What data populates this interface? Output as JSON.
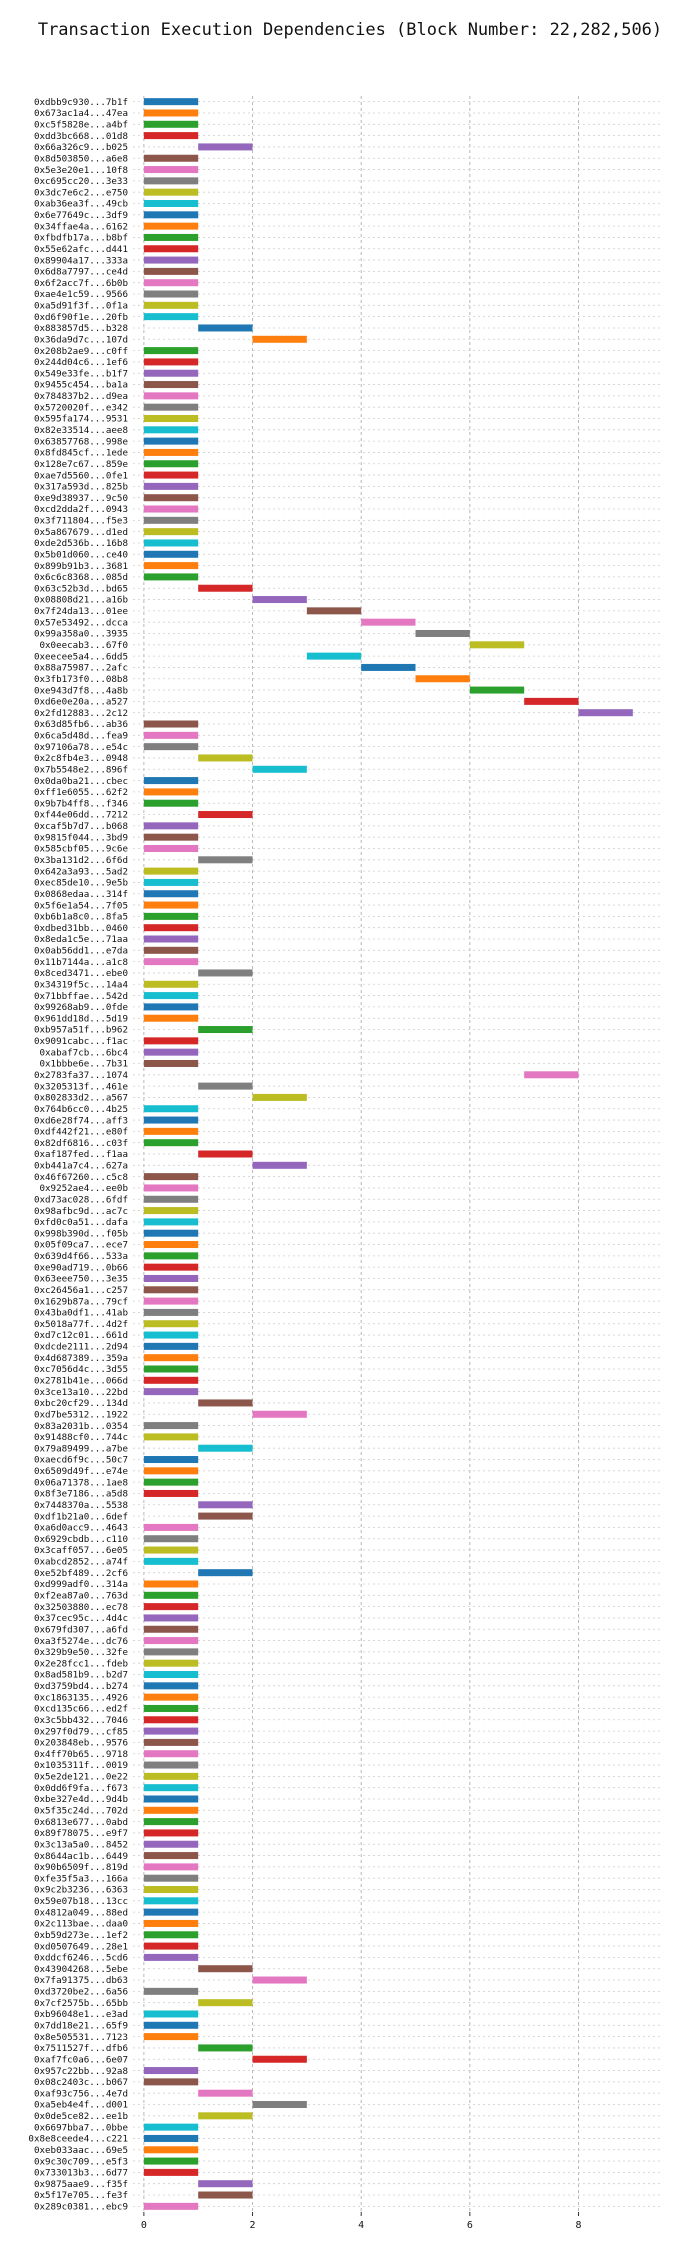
{
  "chart_data": {
    "type": "gantt",
    "title": "Transaction Execution Dependencies (Block Number: 22,282,506)",
    "xlabel": "",
    "ylabel": "",
    "xlim": [
      -0.2,
      9.5
    ],
    "x_ticks": [
      "0",
      "2",
      "4",
      "6",
      "8"
    ],
    "grid": true,
    "colors": {
      "blue": "#1f77b4",
      "orange": "#ff7f0e",
      "green": "#2ca02c",
      "red": "#d62728",
      "purple": "#9467bd",
      "brown": "#8c564b",
      "pink": "#e377c2",
      "gray": "#7f7f7f",
      "olive": "#bcbd22",
      "cyan": "#17becf"
    },
    "transactions": [
      {
        "label": "0xdbb9c930...7b1f",
        "start": 0,
        "color": "blue"
      },
      {
        "label": "0x673ac1a4...47ea",
        "start": 0,
        "color": "orange"
      },
      {
        "label": "0xc5f5828e...a4bf",
        "start": 0,
        "color": "green"
      },
      {
        "label": "0xdd3bc668...01d8",
        "start": 0,
        "color": "red"
      },
      {
        "label": "0x66a326c9...b025",
        "start": 1,
        "color": "purple"
      },
      {
        "label": "0x8d503850...a6e8",
        "start": 0,
        "color": "brown"
      },
      {
        "label": "0x5e3e20e1...10f8",
        "start": 0,
        "color": "pink"
      },
      {
        "label": "0xc695cc20...3e33",
        "start": 0,
        "color": "gray"
      },
      {
        "label": "0x3dc7e6c2...e750",
        "start": 0,
        "color": "olive"
      },
      {
        "label": "0xab36ea3f...49cb",
        "start": 0,
        "color": "cyan"
      },
      {
        "label": "0x6e77649c...3df9",
        "start": 0,
        "color": "blue"
      },
      {
        "label": "0x34ffae4a...6162",
        "start": 0,
        "color": "orange"
      },
      {
        "label": "0xfbdfb17a...b8bf",
        "start": 0,
        "color": "green"
      },
      {
        "label": "0x55e62afc...d441",
        "start": 0,
        "color": "red"
      },
      {
        "label": "0x89904a17...333a",
        "start": 0,
        "color": "purple"
      },
      {
        "label": "0x6d8a7797...ce4d",
        "start": 0,
        "color": "brown"
      },
      {
        "label": "0x6f2acc7f...6b0b",
        "start": 0,
        "color": "pink"
      },
      {
        "label": "0xae4e1c59...9566",
        "start": 0,
        "color": "gray"
      },
      {
        "label": "0xa5d91f3f...0f1a",
        "start": 0,
        "color": "olive"
      },
      {
        "label": "0xd6f90f1e...20fb",
        "start": 0,
        "color": "cyan"
      },
      {
        "label": "0x883857d5...b328",
        "start": 1,
        "color": "blue"
      },
      {
        "label": "0x36da9d7c...107d",
        "start": 2,
        "color": "orange"
      },
      {
        "label": "0x208b2ae9...c0ff",
        "start": 0,
        "color": "green"
      },
      {
        "label": "0x244d04c6...1ef6",
        "start": 0,
        "color": "red"
      },
      {
        "label": "0x549e33fe...b1f7",
        "start": 0,
        "color": "purple"
      },
      {
        "label": "0x9455c454...ba1a",
        "start": 0,
        "color": "brown"
      },
      {
        "label": "0x784837b2...d9ea",
        "start": 0,
        "color": "pink"
      },
      {
        "label": "0x5720020f...e342",
        "start": 0,
        "color": "gray"
      },
      {
        "label": "0x595fa174...9531",
        "start": 0,
        "color": "olive"
      },
      {
        "label": "0x82e33514...aee8",
        "start": 0,
        "color": "cyan"
      },
      {
        "label": "0x63857768...998e",
        "start": 0,
        "color": "blue"
      },
      {
        "label": "0x8fd845cf...1ede",
        "start": 0,
        "color": "orange"
      },
      {
        "label": "0x128e7c67...859e",
        "start": 0,
        "color": "green"
      },
      {
        "label": "0xae7d5560...0fe1",
        "start": 0,
        "color": "red"
      },
      {
        "label": "0x317a593d...825b",
        "start": 0,
        "color": "purple"
      },
      {
        "label": "0xe9d38937...9c50",
        "start": 0,
        "color": "brown"
      },
      {
        "label": "0xcd2dda2f...0943",
        "start": 0,
        "color": "pink"
      },
      {
        "label": "0x3f711804...f5e3",
        "start": 0,
        "color": "gray"
      },
      {
        "label": "0x5a867679...d1ed",
        "start": 0,
        "color": "olive"
      },
      {
        "label": "0xde2d536b...16b8",
        "start": 0,
        "color": "cyan"
      },
      {
        "label": "0x5b01d060...ce40",
        "start": 0,
        "color": "blue"
      },
      {
        "label": "0x899b91b3...3681",
        "start": 0,
        "color": "orange"
      },
      {
        "label": "0x6c6c8368...085d",
        "start": 0,
        "color": "green"
      },
      {
        "label": "0x63c52b3d...bd65",
        "start": 1,
        "color": "red"
      },
      {
        "label": "0x08808d21...a16b",
        "start": 2,
        "color": "purple"
      },
      {
        "label": "0x7f24da13...01ee",
        "start": 3,
        "color": "brown"
      },
      {
        "label": "0x57e53492...dcca",
        "start": 4,
        "color": "pink"
      },
      {
        "label": "0x99a358a0...3935",
        "start": 5,
        "color": "gray"
      },
      {
        "label": "0x0eecab3...67f0",
        "start": 6,
        "color": "olive"
      },
      {
        "label": "0xeecee5a4...6dd5",
        "start": 3,
        "color": "cyan"
      },
      {
        "label": "0x88a75987...2afc",
        "start": 4,
        "color": "blue"
      },
      {
        "label": "0x3fb173f0...08b8",
        "start": 5,
        "color": "orange"
      },
      {
        "label": "0xe943d7f8...4a8b",
        "start": 6,
        "color": "green"
      },
      {
        "label": "0xd6e0e20a...a527",
        "start": 7,
        "color": "red"
      },
      {
        "label": "0x2fd12883...2c12",
        "start": 8,
        "color": "purple"
      },
      {
        "label": "0x63d85fb6...ab36",
        "start": 0,
        "color": "brown"
      },
      {
        "label": "0x6ca5d48d...fea9",
        "start": 0,
        "color": "pink"
      },
      {
        "label": "0x97106a78...e54c",
        "start": 0,
        "color": "gray"
      },
      {
        "label": "0x2c8fb4e3...0948",
        "start": 1,
        "color": "olive"
      },
      {
        "label": "0x7b5548e2...896f",
        "start": 2,
        "color": "cyan"
      },
      {
        "label": "0x0da0ba21...cbec",
        "start": 0,
        "color": "blue"
      },
      {
        "label": "0xff1e6055...62f2",
        "start": 0,
        "color": "orange"
      },
      {
        "label": "0x9b7b4ff8...f346",
        "start": 0,
        "color": "green"
      },
      {
        "label": "0xf44e06dd...7212",
        "start": 1,
        "color": "red"
      },
      {
        "label": "0xcaf5b7d7...b068",
        "start": 0,
        "color": "purple"
      },
      {
        "label": "0x9815f044...3bd9",
        "start": 0,
        "color": "brown"
      },
      {
        "label": "0x585cbf05...9c6e",
        "start": 0,
        "color": "pink"
      },
      {
        "label": "0x3ba131d2...6f6d",
        "start": 1,
        "color": "gray"
      },
      {
        "label": "0x642a3a93...5ad2",
        "start": 0,
        "color": "olive"
      },
      {
        "label": "0xec85de10...9e5b",
        "start": 0,
        "color": "cyan"
      },
      {
        "label": "0x0868edaa...314f",
        "start": 0,
        "color": "blue"
      },
      {
        "label": "0x5f6e1a54...7f05",
        "start": 0,
        "color": "orange"
      },
      {
        "label": "0xb6b1a8c0...8fa5",
        "start": 0,
        "color": "green"
      },
      {
        "label": "0xdbed31bb...0460",
        "start": 0,
        "color": "red"
      },
      {
        "label": "0x8eda1c5e...71aa",
        "start": 0,
        "color": "purple"
      },
      {
        "label": "0x0ab56dd1...e7da",
        "start": 0,
        "color": "brown"
      },
      {
        "label": "0x11b7144a...a1c8",
        "start": 0,
        "color": "pink"
      },
      {
        "label": "0x8ced3471...ebe0",
        "start": 1,
        "color": "gray"
      },
      {
        "label": "0x34319f5c...14a4",
        "start": 0,
        "color": "olive"
      },
      {
        "label": "0x71bbffae...542d",
        "start": 0,
        "color": "cyan"
      },
      {
        "label": "0x99268ab9...0fde",
        "start": 0,
        "color": "blue"
      },
      {
        "label": "0x961dd18d...5d19",
        "start": 0,
        "color": "orange"
      },
      {
        "label": "0xb957a51f...b962",
        "start": 1,
        "color": "green"
      },
      {
        "label": "0x9091cabc...f1ac",
        "start": 0,
        "color": "red"
      },
      {
        "label": "0xabaf7cb...6bc4",
        "start": 0,
        "color": "purple"
      },
      {
        "label": "0x1bbbe6e...7b31",
        "start": 0,
        "color": "brown"
      },
      {
        "label": "0x2783fa37...1074",
        "start": 7,
        "color": "pink"
      },
      {
        "label": "0x3205313f...461e",
        "start": 1,
        "color": "gray"
      },
      {
        "label": "0x802833d2...a567",
        "start": 2,
        "color": "olive"
      },
      {
        "label": "0x764b6cc0...4b25",
        "start": 0,
        "color": "cyan"
      },
      {
        "label": "0xd6e28f74...aff3",
        "start": 0,
        "color": "blue"
      },
      {
        "label": "0xdf442f21...e80f",
        "start": 0,
        "color": "orange"
      },
      {
        "label": "0x82df6816...c03f",
        "start": 0,
        "color": "green"
      },
      {
        "label": "0xaf187fed...f1aa",
        "start": 1,
        "color": "red"
      },
      {
        "label": "0xb441a7c4...627a",
        "start": 2,
        "color": "purple"
      },
      {
        "label": "0x46f67260...c5c8",
        "start": 0,
        "color": "brown"
      },
      {
        "label": "0x9252ae4...ee0b",
        "start": 0,
        "color": "pink"
      },
      {
        "label": "0xd73ac028...6fdf",
        "start": 0,
        "color": "gray"
      },
      {
        "label": "0x98afbc9d...ac7c",
        "start": 0,
        "color": "olive"
      },
      {
        "label": "0xfd0c0a51...dafa",
        "start": 0,
        "color": "cyan"
      },
      {
        "label": "0x998b390d...f05b",
        "start": 0,
        "color": "blue"
      },
      {
        "label": "0x05f09ca7...ece7",
        "start": 0,
        "color": "orange"
      },
      {
        "label": "0x639d4f66...533a",
        "start": 0,
        "color": "green"
      },
      {
        "label": "0xe90ad719...0b66",
        "start": 0,
        "color": "red"
      },
      {
        "label": "0x63eee750...3e35",
        "start": 0,
        "color": "purple"
      },
      {
        "label": "0xc26456a1...c257",
        "start": 0,
        "color": "brown"
      },
      {
        "label": "0x1629b87a...79cf",
        "start": 0,
        "color": "pink"
      },
      {
        "label": "0x43ba0df1...41ab",
        "start": 0,
        "color": "gray"
      },
      {
        "label": "0x5018a77f...4d2f",
        "start": 0,
        "color": "olive"
      },
      {
        "label": "0xd7c12c01...661d",
        "start": 0,
        "color": "cyan"
      },
      {
        "label": "0xdcde2111...2d94",
        "start": 0,
        "color": "blue"
      },
      {
        "label": "0x4d687389...359a",
        "start": 0,
        "color": "orange"
      },
      {
        "label": "0xc7056d4c...3d55",
        "start": 0,
        "color": "green"
      },
      {
        "label": "0x2781b41e...066d",
        "start": 0,
        "color": "red"
      },
      {
        "label": "0x3ce13a10...22bd",
        "start": 0,
        "color": "purple"
      },
      {
        "label": "0xbc20cf29...134d",
        "start": 1,
        "color": "brown"
      },
      {
        "label": "0xd7be5312...1922",
        "start": 2,
        "color": "pink"
      },
      {
        "label": "0x83a2031b...0354",
        "start": 0,
        "color": "gray"
      },
      {
        "label": "0x91488cf0...744c",
        "start": 0,
        "color": "olive"
      },
      {
        "label": "0x79a89499...a7be",
        "start": 1,
        "color": "cyan"
      },
      {
        "label": "0xaecd6f9c...50c7",
        "start": 0,
        "color": "blue"
      },
      {
        "label": "0x6509d49f...e74e",
        "start": 0,
        "color": "orange"
      },
      {
        "label": "0x06a71378...1ae8",
        "start": 0,
        "color": "green"
      },
      {
        "label": "0x8f3e7186...a5d8",
        "start": 0,
        "color": "red"
      },
      {
        "label": "0x7448370a...5538",
        "start": 1,
        "color": "purple"
      },
      {
        "label": "0xdf1b21a0...6def",
        "start": 1,
        "color": "brown"
      },
      {
        "label": "0xa6d0acc9...4643",
        "start": 0,
        "color": "pink"
      },
      {
        "label": "0x6929cbdb...c110",
        "start": 0,
        "color": "gray"
      },
      {
        "label": "0x3caff057...6e05",
        "start": 0,
        "color": "olive"
      },
      {
        "label": "0xabcd2852...a74f",
        "start": 0,
        "color": "cyan"
      },
      {
        "label": "0xe52bf489...2cf6",
        "start": 1,
        "color": "blue"
      },
      {
        "label": "0xd999adf0...314a",
        "start": 0,
        "color": "orange"
      },
      {
        "label": "0xf2ea87a0...763d",
        "start": 0,
        "color": "green"
      },
      {
        "label": "0x32503880...ec78",
        "start": 0,
        "color": "red"
      },
      {
        "label": "0x37cec95c...4d4c",
        "start": 0,
        "color": "purple"
      },
      {
        "label": "0x679fd307...a6fd",
        "start": 0,
        "color": "brown"
      },
      {
        "label": "0xa3f5274e...dc76",
        "start": 0,
        "color": "pink"
      },
      {
        "label": "0x329b9e50...32fe",
        "start": 0,
        "color": "gray"
      },
      {
        "label": "0x2e28fcc1...fdeb",
        "start": 0,
        "color": "olive"
      },
      {
        "label": "0x8ad581b9...b2d7",
        "start": 0,
        "color": "cyan"
      },
      {
        "label": "0xd3759bd4...b274",
        "start": 0,
        "color": "blue"
      },
      {
        "label": "0xc1863135...4926",
        "start": 0,
        "color": "orange"
      },
      {
        "label": "0xcd135c66...ed2f",
        "start": 0,
        "color": "green"
      },
      {
        "label": "0x3c5bb432...7046",
        "start": 0,
        "color": "red"
      },
      {
        "label": "0x297f0d79...cf85",
        "start": 0,
        "color": "purple"
      },
      {
        "label": "0x203848eb...9576",
        "start": 0,
        "color": "brown"
      },
      {
        "label": "0x4ff70b65...9718",
        "start": 0,
        "color": "pink"
      },
      {
        "label": "0x1035311f...0019",
        "start": 0,
        "color": "gray"
      },
      {
        "label": "0x5e2de121...0e22",
        "start": 0,
        "color": "olive"
      },
      {
        "label": "0x0dd6f9fa...f673",
        "start": 0,
        "color": "cyan"
      },
      {
        "label": "0xbe327e4d...9d4b",
        "start": 0,
        "color": "blue"
      },
      {
        "label": "0x5f35c24d...702d",
        "start": 0,
        "color": "orange"
      },
      {
        "label": "0x6813e677...0abd",
        "start": 0,
        "color": "green"
      },
      {
        "label": "0x89f78075...e9f7",
        "start": 0,
        "color": "red"
      },
      {
        "label": "0x3c13a5a0...8452",
        "start": 0,
        "color": "purple"
      },
      {
        "label": "0x8644ac1b...6449",
        "start": 0,
        "color": "brown"
      },
      {
        "label": "0x90b6509f...819d",
        "start": 0,
        "color": "pink"
      },
      {
        "label": "0xfe35f5a3...166a",
        "start": 0,
        "color": "gray"
      },
      {
        "label": "0x9c2b3236...6363",
        "start": 0,
        "color": "olive"
      },
      {
        "label": "0x59e07b18...13cc",
        "start": 0,
        "color": "cyan"
      },
      {
        "label": "0x4812a049...88ed",
        "start": 0,
        "color": "blue"
      },
      {
        "label": "0x2c113bae...daa0",
        "start": 0,
        "color": "orange"
      },
      {
        "label": "0xb59d273e...1ef2",
        "start": 0,
        "color": "green"
      },
      {
        "label": "0xd0507649...28e1",
        "start": 0,
        "color": "red"
      },
      {
        "label": "0xddcf6246...5cd6",
        "start": 0,
        "color": "purple"
      },
      {
        "label": "0x43904268...5ebe",
        "start": 1,
        "color": "brown"
      },
      {
        "label": "0x7fa91375...db63",
        "start": 2,
        "color": "pink"
      },
      {
        "label": "0xd3720be2...6a56",
        "start": 0,
        "color": "gray"
      },
      {
        "label": "0x7cf2575b...65bb",
        "start": 1,
        "color": "olive"
      },
      {
        "label": "0xb96048e1...e3ad",
        "start": 0,
        "color": "cyan"
      },
      {
        "label": "0x7dd18e21...65f9",
        "start": 0,
        "color": "blue"
      },
      {
        "label": "0x8e505531...7123",
        "start": 0,
        "color": "orange"
      },
      {
        "label": "0x7511527f...dfb6",
        "start": 1,
        "color": "green"
      },
      {
        "label": "0xaf7fc0a6...6e07",
        "start": 2,
        "color": "red"
      },
      {
        "label": "0x957c22bb...92a8",
        "start": 0,
        "color": "purple"
      },
      {
        "label": "0x08c2403c...b067",
        "start": 0,
        "color": "brown"
      },
      {
        "label": "0xaf93c756...4e7d",
        "start": 1,
        "color": "pink"
      },
      {
        "label": "0xa5eb4e4f...d001",
        "start": 2,
        "color": "gray"
      },
      {
        "label": "0x0de5ce82...ee1b",
        "start": 1,
        "color": "olive"
      },
      {
        "label": "0x6697bba7...0bbe",
        "start": 0,
        "color": "cyan"
      },
      {
        "label": "0x8e8ceede4...c221",
        "start": 0,
        "color": "blue"
      },
      {
        "label": "0xeb033aac...69e5",
        "start": 0,
        "color": "orange"
      },
      {
        "label": "0x9c30c709...e5f3",
        "start": 0,
        "color": "green"
      },
      {
        "label": "0x733013b3...6d77",
        "start": 0,
        "color": "red"
      },
      {
        "label": "0x9875aae9...f35f",
        "start": 1,
        "color": "purple"
      },
      {
        "label": "0x5f17e705...fe3f",
        "start": 1,
        "color": "brown"
      },
      {
        "label": "0x289c0381...ebc9",
        "start": 0,
        "color": "pink"
      }
    ]
  }
}
